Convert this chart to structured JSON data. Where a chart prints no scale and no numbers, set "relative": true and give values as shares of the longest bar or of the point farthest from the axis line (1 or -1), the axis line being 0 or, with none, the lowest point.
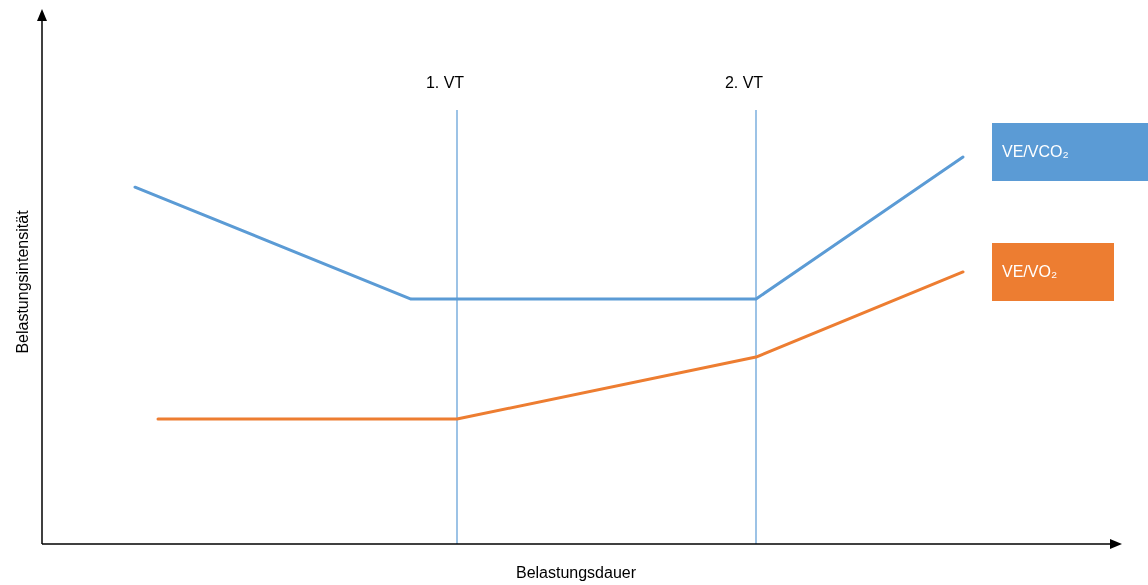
{
  "chart_data": {
    "type": "line",
    "relative": true,
    "xlabel": "Belastungsdauer",
    "ylabel": "Belastungsintensität",
    "marker": "none",
    "line_style": "solid",
    "categories": [
      null,
      null,
      null,
      null,
      null,
      null,
      null,
      null,
      null,
      null,
      null,
      null,
      null,
      null,
      null,
      null,
      null,
      null,
      null,
      null,
      null,
      null,
      null,
      null,
      null,
      null,
      null,
      null,
      null,
      null,
      null,
      null,
      null,
      null,
      null,
      null,
      null,
      null,
      null,
      null,
      null,
      null,
      null,
      null,
      null,
      null,
      null
    ],
    "series": [
      {
        "name": "VE/VCO₂",
        "color": "#5b9bd5",
        "values": [
          null,
          null,
          null,
          null,
          0.922,
          null,
          null,
          null,
          null,
          null,
          null,
          null,
          null,
          null,
          null,
          null,
          0.633,
          null,
          null,
          null,
          null,
          null,
          null,
          null,
          null,
          null,
          null,
          null,
          null,
          null,
          null,
          0.633,
          null,
          null,
          null,
          null,
          null,
          null,
          null,
          null,
          1,
          null,
          null,
          null,
          null,
          null,
          null
        ]
      },
      {
        "name": "VE/VO₂",
        "color": "#ed7d31",
        "values": [
          null,
          null,
          null,
          null,
          null,
          0.323,
          null,
          null,
          null,
          null,
          null,
          null,
          null,
          null,
          null,
          null,
          null,
          null,
          0.323,
          null,
          null,
          null,
          null,
          null,
          null,
          null,
          null,
          null,
          null,
          null,
          null,
          0.483,
          null,
          null,
          null,
          null,
          null,
          null,
          null,
          null,
          0.703,
          null,
          null,
          null,
          null,
          null,
          null
        ]
      }
    ],
    "annotations": [
      "1. VT",
      "2. VT"
    ]
  }
}
